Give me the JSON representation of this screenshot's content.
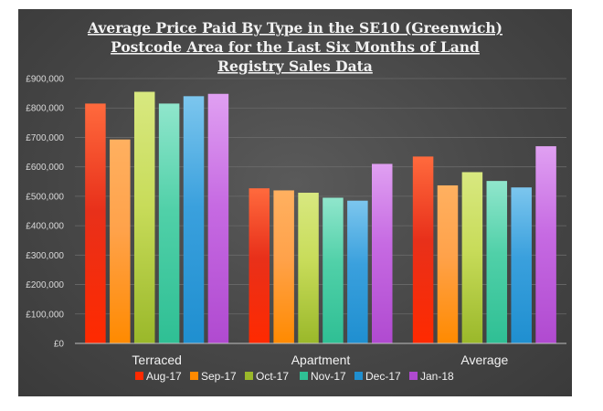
{
  "chart_data": {
    "type": "bar",
    "title_lines": [
      "Average Price Paid By Type in the SE10 (Greenwich)",
      "Postcode Area for the Last Six Months of Land",
      "Registry Sales Data"
    ],
    "categories": [
      "Terraced",
      "Apartment",
      "Average"
    ],
    "ytick_labels": [
      "£0",
      "£100,000",
      "£200,000",
      "£300,000",
      "£400,000",
      "£500,000",
      "£600,000",
      "£700,000",
      "£800,000",
      "£900,000"
    ],
    "ylim": [
      0,
      900000
    ],
    "grid": true,
    "legend_position": "bottom",
    "series": [
      {
        "name": "Aug-17",
        "values": [
          815000,
          527000,
          635000
        ],
        "colors": [
          "#ff2a00",
          "#e8301a",
          "#ff6a3d"
        ]
      },
      {
        "name": "Sep-17",
        "values": [
          693000,
          520000,
          537000
        ],
        "colors": [
          "#ff8a00",
          "#ffa24a",
          "#ffb060"
        ]
      },
      {
        "name": "Oct-17",
        "values": [
          855000,
          512000,
          582000
        ],
        "colors": [
          "#9ab82a",
          "#c8dc5a",
          "#d8e880"
        ]
      },
      {
        "name": "Nov-17",
        "values": [
          815000,
          495000,
          552000
        ],
        "colors": [
          "#2fbf94",
          "#50d0a8",
          "#90e6cc"
        ]
      },
      {
        "name": "Dec-17",
        "values": [
          840000,
          485000,
          530000
        ],
        "colors": [
          "#1f8fd0",
          "#3aa0dd",
          "#7cc6ee"
        ]
      },
      {
        "name": "Jan-18",
        "values": [
          848000,
          610000,
          670000
        ],
        "colors": [
          "#b04ad0",
          "#c66ae2",
          "#e0a0f2"
        ]
      }
    ]
  }
}
